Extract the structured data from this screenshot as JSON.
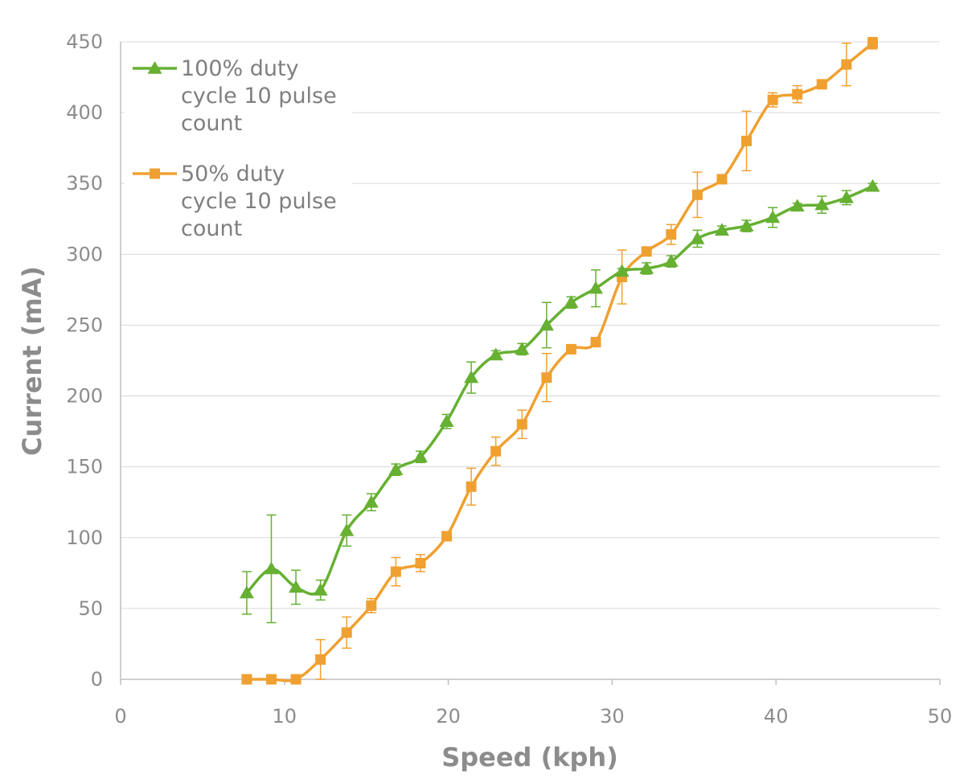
{
  "chart_data": {
    "type": "line",
    "xlabel": "Speed (kph)",
    "ylabel": "Current (mA)",
    "xlim": [
      0,
      50
    ],
    "ylim": [
      0,
      450
    ],
    "xticks": [
      0,
      10,
      20,
      30,
      40,
      50
    ],
    "yticks": [
      0,
      50,
      100,
      150,
      200,
      250,
      300,
      350,
      400,
      450
    ],
    "grid": "horizontal",
    "legend_position": "top-left",
    "series": [
      {
        "name": "100% duty cycle 10 pulse count",
        "name_lines": [
          "100% duty",
          "cycle 10 pulse",
          "count"
        ],
        "color": "#66b032",
        "marker": "triangle",
        "x": [
          7.7,
          9.2,
          10.7,
          12.2,
          13.8,
          15.3,
          16.8,
          18.3,
          19.9,
          21.4,
          22.9,
          24.5,
          26.0,
          27.5,
          29.0,
          30.6,
          32.1,
          33.6,
          35.2,
          36.7,
          38.2,
          39.8,
          41.3,
          42.8,
          44.3,
          45.9
        ],
        "y": [
          61,
          78,
          65,
          63,
          105,
          125,
          148,
          157,
          182,
          213,
          229,
          233,
          250,
          266,
          276,
          288,
          290,
          295,
          311,
          317,
          320,
          326,
          334,
          335,
          340,
          348
        ],
        "err": [
          15,
          38,
          12,
          7,
          11,
          6,
          4,
          4,
          5,
          11,
          3,
          4,
          16,
          4,
          13,
          2,
          4,
          4,
          6,
          3,
          4,
          7,
          2,
          6,
          5,
          2
        ]
      },
      {
        "name": "50% duty cycle 10 pulse count",
        "name_lines": [
          "50% duty",
          "cycle 10 pulse",
          "count"
        ],
        "color": "#f0a030",
        "marker": "square",
        "x": [
          7.7,
          9.2,
          10.7,
          12.2,
          13.8,
          15.3,
          16.8,
          18.3,
          19.9,
          21.4,
          22.9,
          24.5,
          26.0,
          27.5,
          29.0,
          30.6,
          32.1,
          33.6,
          35.2,
          36.7,
          38.2,
          39.8,
          41.3,
          42.8,
          44.3,
          45.9
        ],
        "y": [
          0,
          0,
          0,
          14,
          33,
          52,
          76,
          82,
          101,
          136,
          161,
          180,
          213,
          233,
          238,
          284,
          302,
          314,
          342,
          353,
          380,
          409,
          413,
          420,
          434,
          449
        ],
        "err": [
          0,
          0,
          0,
          14,
          11,
          5,
          10,
          6,
          2,
          13,
          10,
          10,
          17,
          3,
          2,
          19,
          3,
          7,
          16,
          2,
          21,
          5,
          6,
          2,
          15,
          4
        ]
      }
    ]
  }
}
